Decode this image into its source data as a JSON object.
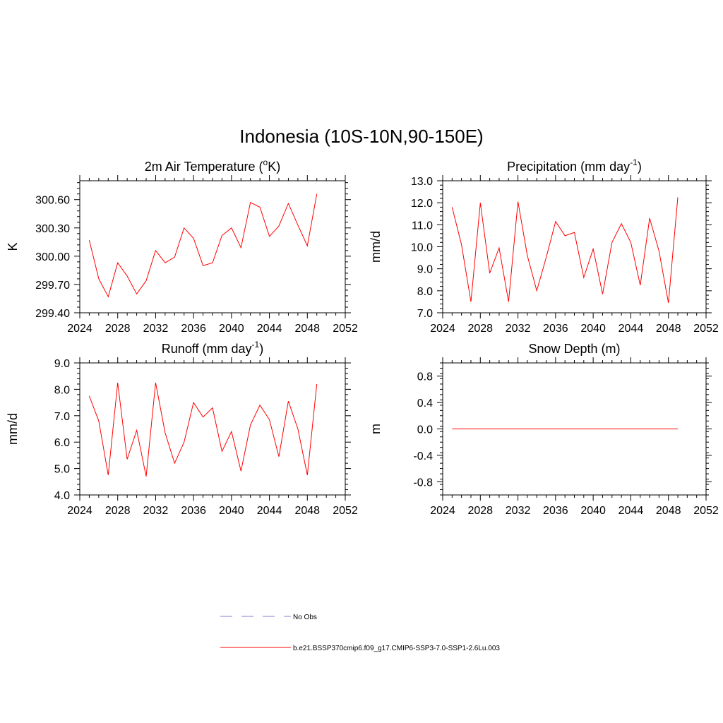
{
  "figure": {
    "title": "Indonesia (10S-10N,90-150E)"
  },
  "legend": {
    "entries": [
      {
        "label": "No Obs",
        "color": "#9999dd",
        "dash": "dashed"
      },
      {
        "label": "b.e21.BSSP370cmip6.f09_g17.CMIP6-SSP3-7.0-SSP1-2.6Lu.003",
        "color": "#ff0000",
        "dash": "solid"
      }
    ]
  },
  "chart_data": [
    {
      "type": "line",
      "title": "2m Air Temperature (",
      "title_sup": "o",
      "title_after": "K)",
      "ylabel": "K",
      "xlim": [
        2024,
        2052
      ],
      "ylim": [
        299.4,
        300.8
      ],
      "xticks": [
        2024,
        2028,
        2032,
        2036,
        2040,
        2044,
        2048,
        2052
      ],
      "yticks": [
        299.4,
        299.7,
        300.0,
        300.3,
        300.6
      ],
      "ytick_labels": [
        "299.40",
        "299.70",
        "300.00",
        "300.30",
        "300.60"
      ],
      "color": "#ff0000",
      "x": [
        2025,
        2026,
        2027,
        2028,
        2029,
        2030,
        2031,
        2032,
        2033,
        2034,
        2035,
        2036,
        2037,
        2038,
        2039,
        2040,
        2041,
        2042,
        2043,
        2044,
        2045,
        2046,
        2047,
        2048,
        2049
      ],
      "y": [
        300.17,
        299.76,
        299.57,
        299.93,
        299.79,
        299.6,
        299.74,
        300.06,
        299.93,
        299.99,
        300.3,
        300.19,
        299.9,
        299.93,
        300.22,
        300.3,
        300.09,
        300.57,
        300.52,
        300.21,
        300.32,
        300.56,
        300.33,
        300.11,
        300.66
      ]
    },
    {
      "type": "line",
      "title": "Precipitation (mm day",
      "title_sup": "-1",
      "title_after": ")",
      "ylabel": "mm/d",
      "xlim": [
        2024,
        2052
      ],
      "ylim": [
        7.0,
        13.0
      ],
      "xticks": [
        2024,
        2028,
        2032,
        2036,
        2040,
        2044,
        2048,
        2052
      ],
      "yticks": [
        7.0,
        8.0,
        9.0,
        10.0,
        11.0,
        12.0,
        13.0
      ],
      "ytick_labels": [
        "7.0",
        "8.0",
        "9.0",
        "10.0",
        "11.0",
        "12.0",
        "13.0"
      ],
      "color": "#ff0000",
      "x": [
        2025,
        2026,
        2027,
        2028,
        2029,
        2030,
        2031,
        2032,
        2033,
        2034,
        2035,
        2036,
        2037,
        2038,
        2039,
        2040,
        2041,
        2042,
        2043,
        2044,
        2045,
        2046,
        2047,
        2048,
        2049
      ],
      "y": [
        11.8,
        10.1,
        7.5,
        12.0,
        8.8,
        9.95,
        7.5,
        12.05,
        9.6,
        8.0,
        9.5,
        11.15,
        10.5,
        10.65,
        8.6,
        9.9,
        7.85,
        10.2,
        11.05,
        10.2,
        8.25,
        11.3,
        9.8,
        7.45,
        12.25
      ]
    },
    {
      "type": "line",
      "title": "Runoff (mm day",
      "title_sup": "-1",
      "title_after": ")",
      "ylabel": "mm/d",
      "xlim": [
        2024,
        2052
      ],
      "ylim": [
        4.0,
        9.0
      ],
      "xticks": [
        2024,
        2028,
        2032,
        2036,
        2040,
        2044,
        2048,
        2052
      ],
      "yticks": [
        4.0,
        5.0,
        6.0,
        7.0,
        8.0,
        9.0
      ],
      "ytick_labels": [
        "4.0",
        "5.0",
        "6.0",
        "7.0",
        "8.0",
        "9.0"
      ],
      "color": "#ff0000",
      "x": [
        2025,
        2026,
        2027,
        2028,
        2029,
        2030,
        2031,
        2032,
        2033,
        2034,
        2035,
        2036,
        2037,
        2038,
        2039,
        2040,
        2041,
        2042,
        2043,
        2044,
        2045,
        2046,
        2047,
        2048,
        2049
      ],
      "y": [
        7.75,
        6.8,
        4.75,
        8.25,
        5.35,
        6.45,
        4.7,
        8.25,
        6.35,
        5.2,
        6.0,
        7.5,
        6.95,
        7.3,
        5.65,
        6.4,
        4.9,
        6.65,
        7.4,
        6.85,
        5.45,
        7.55,
        6.5,
        4.75,
        8.2
      ]
    },
    {
      "type": "line",
      "title": "Snow Depth (m)",
      "title_sup": "",
      "title_after": "",
      "ylabel": "m",
      "xlim": [
        2024,
        2052
      ],
      "ylim": [
        -1.0,
        1.0
      ],
      "xticks": [
        2024,
        2028,
        2032,
        2036,
        2040,
        2044,
        2048,
        2052
      ],
      "yticks": [
        -0.8,
        -0.4,
        0.0,
        0.4,
        0.8
      ],
      "ytick_labels": [
        "-0.8",
        "-0.4",
        "0.0",
        "0.4",
        "0.8"
      ],
      "color": "#ff0000",
      "x": [
        2025,
        2026,
        2027,
        2028,
        2029,
        2030,
        2031,
        2032,
        2033,
        2034,
        2035,
        2036,
        2037,
        2038,
        2039,
        2040,
        2041,
        2042,
        2043,
        2044,
        2045,
        2046,
        2047,
        2048,
        2049
      ],
      "y": [
        0,
        0,
        0,
        0,
        0,
        0,
        0,
        0,
        0,
        0,
        0,
        0,
        0,
        0,
        0,
        0,
        0,
        0,
        0,
        0,
        0,
        0,
        0,
        0,
        0
      ]
    }
  ]
}
